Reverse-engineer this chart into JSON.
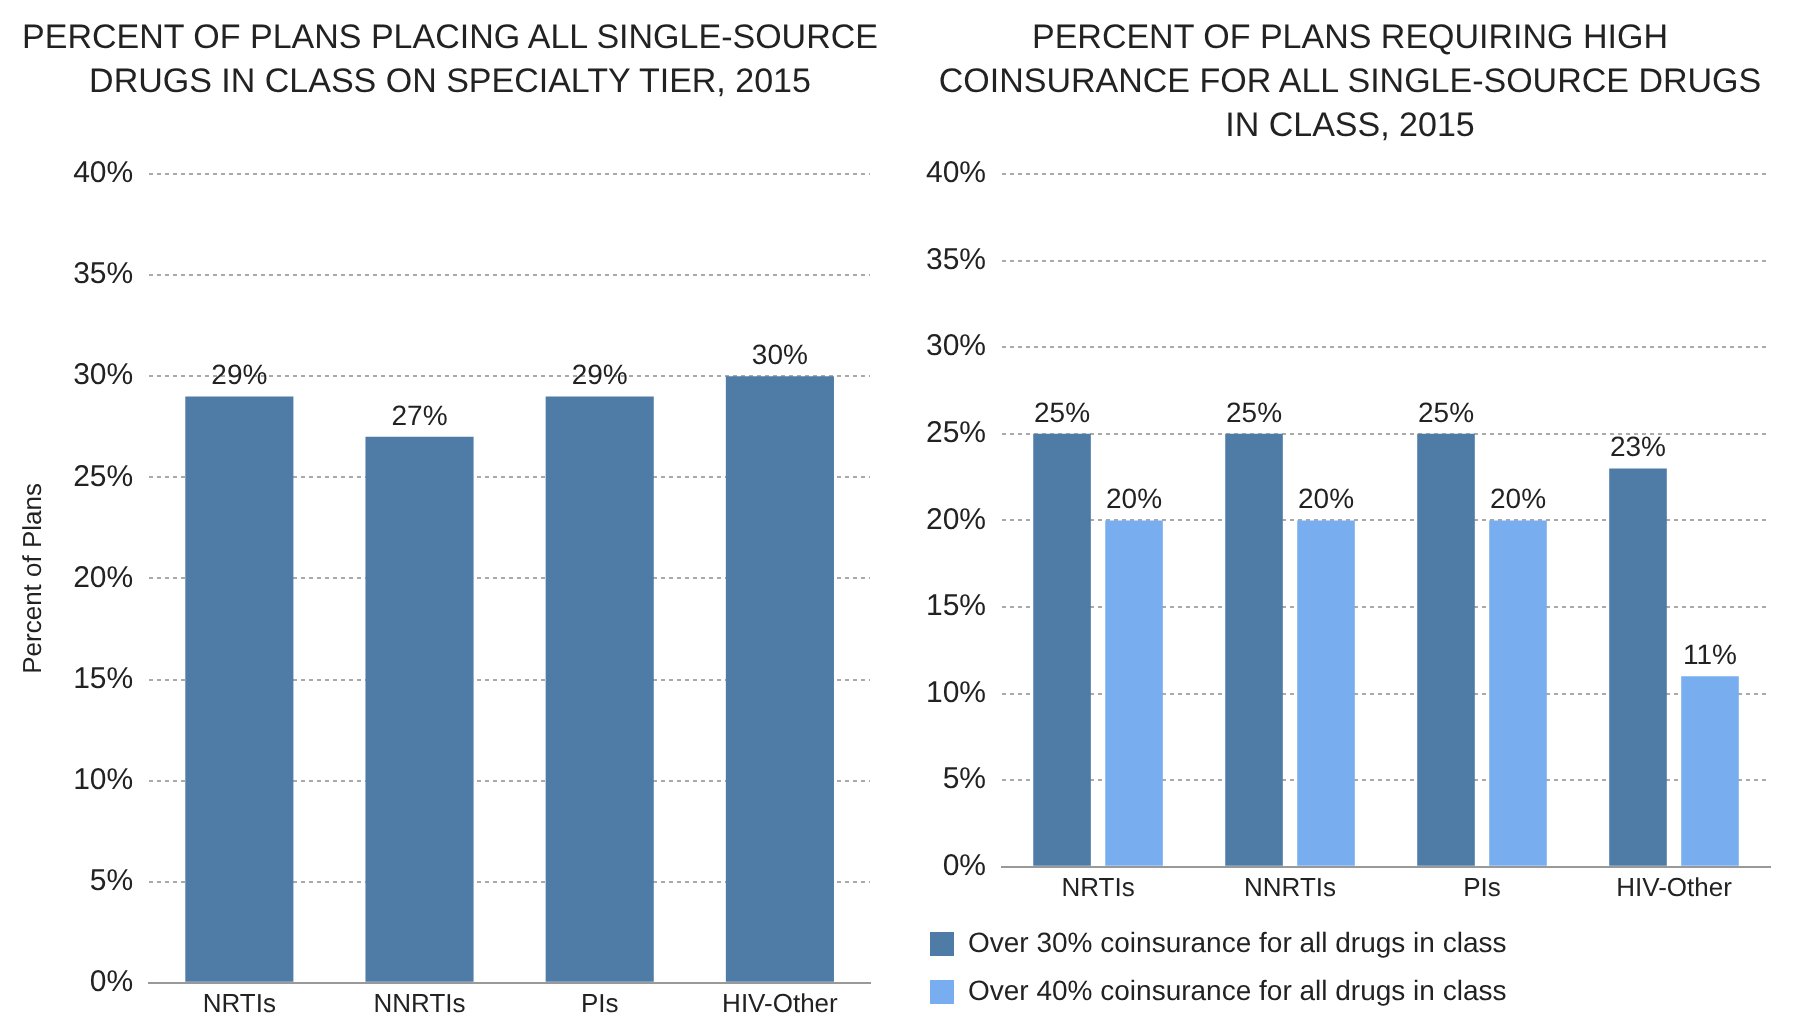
{
  "chart_data": [
    {
      "type": "bar",
      "title": "PERCENT OF PLANS PLACING ALL SINGLE-SOURCE DRUGS IN CLASS ON SPECIALTY TIER, 2015",
      "ylabel": "Percent of Plans",
      "categories": [
        "NRTIs",
        "NNRTIs",
        "PIs",
        "HIV-Other"
      ],
      "series": [
        {
          "color": "#4e7ca6",
          "values": [
            29,
            27,
            29,
            30
          ],
          "value_labels": [
            "29%",
            "27%",
            "29%",
            "30%"
          ]
        }
      ],
      "ylim": [
        0,
        40
      ],
      "yticks": [
        {
          "value": 0,
          "label": "0%"
        },
        {
          "value": 5,
          "label": "5%"
        },
        {
          "value": 10,
          "label": "10%"
        },
        {
          "value": 15,
          "label": "15%"
        },
        {
          "value": 20,
          "label": "20%"
        },
        {
          "value": 25,
          "label": "25%"
        },
        {
          "value": 30,
          "label": "30%"
        },
        {
          "value": 35,
          "label": "35%"
        },
        {
          "value": 40,
          "label": "40%"
        }
      ],
      "grid": "y",
      "legend": false
    },
    {
      "type": "bar",
      "title": "PERCENT OF PLANS REQUIRING HIGH COINSURANCE FOR ALL SINGLE-SOURCE DRUGS IN CLASS, 2015",
      "categories": [
        "NRTIs",
        "NNRTIs",
        "PIs",
        "HIV-Other"
      ],
      "series": [
        {
          "name": "Over 30% coinsurance for all drugs in class",
          "color": "#4e7ca6",
          "values": [
            25,
            25,
            25,
            23
          ],
          "value_labels": [
            "25%",
            "25%",
            "25%",
            "23%"
          ]
        },
        {
          "name": "Over 40% coinsurance for all drugs in class",
          "color": "#78aef0",
          "values": [
            20,
            20,
            20,
            11
          ],
          "value_labels": [
            "20%",
            "20%",
            "20%",
            "11%"
          ]
        }
      ],
      "ylim": [
        0,
        40
      ],
      "yticks": [
        {
          "value": 0,
          "label": "0%"
        },
        {
          "value": 5,
          "label": "5%"
        },
        {
          "value": 10,
          "label": "10%"
        },
        {
          "value": 15,
          "label": "15%"
        },
        {
          "value": 20,
          "label": "20%"
        },
        {
          "value": 25,
          "label": "25%"
        },
        {
          "value": 30,
          "label": "30%"
        },
        {
          "value": 35,
          "label": "35%"
        },
        {
          "value": 40,
          "label": "40%"
        }
      ],
      "grid": "y",
      "legend": "bottom"
    }
  ]
}
